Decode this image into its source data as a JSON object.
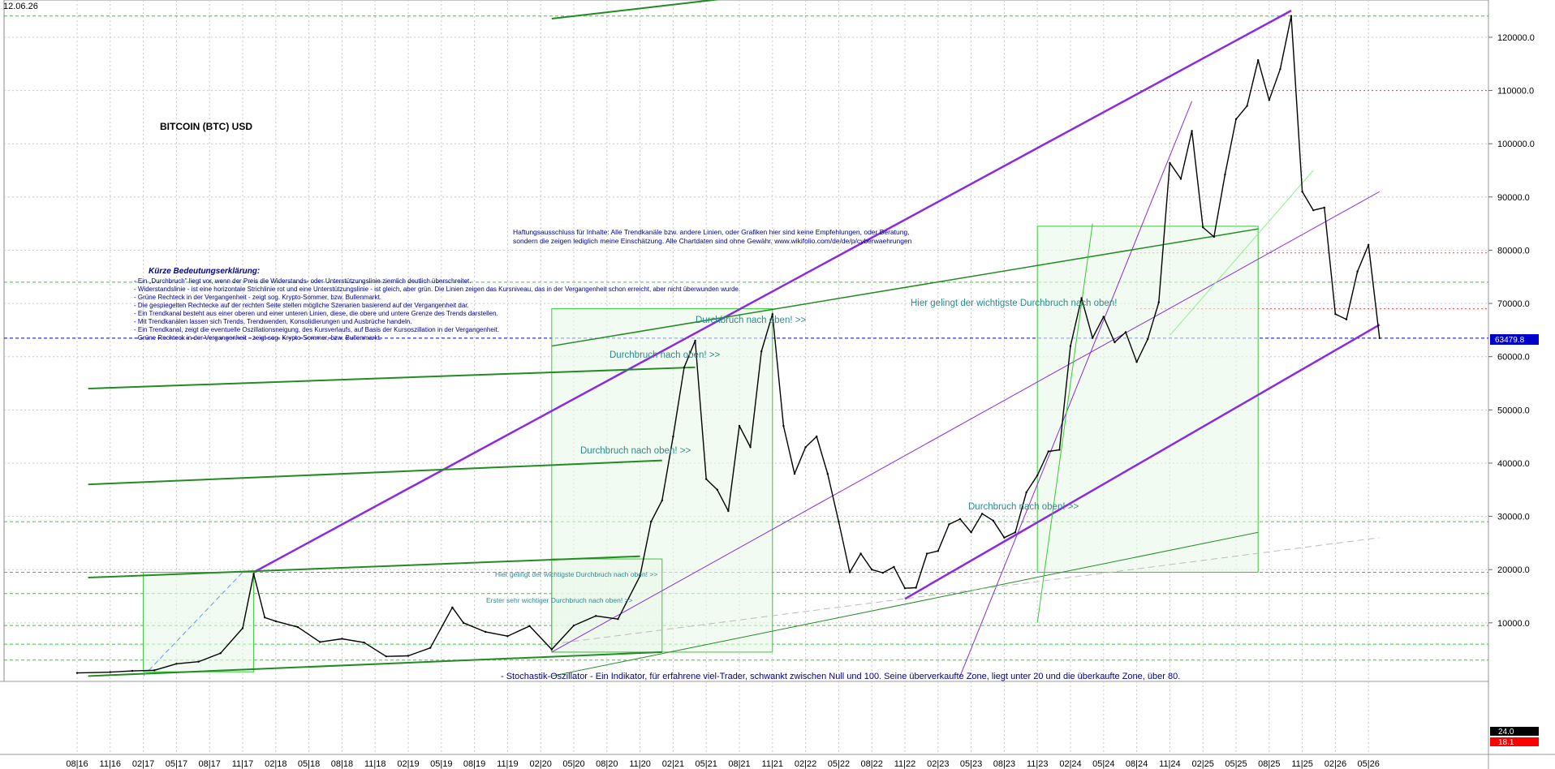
{
  "header": {
    "date": "12.06.26"
  },
  "chart_data": {
    "type": "line",
    "title": "BITCOIN (BTC) USD",
    "xlabel": "",
    "ylabel": "",
    "x_ticks": [
      "08|16",
      "11|16",
      "02|17",
      "05|17",
      "08|17",
      "11|17",
      "02|18",
      "05|18",
      "08|18",
      "11|18",
      "02|19",
      "05|19",
      "08|19",
      "11|19",
      "02|20",
      "05|20",
      "08|20",
      "11|20",
      "02|21",
      "05|21",
      "08|21",
      "11|21",
      "02|22",
      "05|22",
      "08|22",
      "11|22",
      "02|23",
      "05|23",
      "08|23",
      "11|23",
      "02|24",
      "05|24",
      "08|24",
      "11|24",
      "02|25",
      "05|25",
      "08|25",
      "11|25",
      "02|26",
      "05|26"
    ],
    "y_ticks": [
      10000,
      20000,
      30000,
      40000,
      50000,
      60000,
      70000,
      80000,
      90000,
      100000,
      110000,
      120000
    ],
    "y_tick_labels": [
      "10000.0",
      "20000.0",
      "30000.0",
      "40000.0",
      "50000.0",
      "60000.0",
      "70000.0",
      "80000.0",
      "90000.0",
      "100000.0",
      "110000.0",
      "120000.0"
    ],
    "ylim": [
      -1000,
      127000
    ],
    "grid": true,
    "last_price": 63479.8,
    "last_price_label": "63479.8",
    "series": [
      {
        "name": "",
        "color": "#000000",
        "points": [
          [
            "2016-08",
            590
          ],
          [
            "2016-11",
            740
          ],
          [
            "2017-01",
            970
          ],
          [
            "2017-03",
            1080
          ],
          [
            "2017-05",
            2300
          ],
          [
            "2017-07",
            2700
          ],
          [
            "2017-09",
            4300
          ],
          [
            "2017-11",
            9000
          ],
          [
            "2017-12",
            19200
          ],
          [
            "2018-01",
            11000
          ],
          [
            "2018-02",
            10300
          ],
          [
            "2018-04",
            9200
          ],
          [
            "2018-06",
            6400
          ],
          [
            "2018-08",
            7000
          ],
          [
            "2018-10",
            6300
          ],
          [
            "2018-12",
            3700
          ],
          [
            "2019-02",
            3800
          ],
          [
            "2019-04",
            5300
          ],
          [
            "2019-06",
            12900
          ],
          [
            "2019-07",
            10000
          ],
          [
            "2019-09",
            8300
          ],
          [
            "2019-11",
            7500
          ],
          [
            "2020-01",
            9400
          ],
          [
            "2020-03",
            5000
          ],
          [
            "2020-05",
            9500
          ],
          [
            "2020-07",
            11300
          ],
          [
            "2020-09",
            10700
          ],
          [
            "2020-11",
            18800
          ],
          [
            "2020-12",
            29000
          ],
          [
            "2021-01",
            33000
          ],
          [
            "2021-02",
            45000
          ],
          [
            "2021-03",
            58000
          ],
          [
            "2021-04",
            63000
          ],
          [
            "2021-05",
            37000
          ],
          [
            "2021-06",
            35000
          ],
          [
            "2021-07",
            31000
          ],
          [
            "2021-08",
            47000
          ],
          [
            "2021-09",
            43000
          ],
          [
            "2021-10",
            61000
          ],
          [
            "2021-11",
            68000
          ],
          [
            "2021-12",
            47000
          ],
          [
            "2022-01",
            38000
          ],
          [
            "2022-02",
            43000
          ],
          [
            "2022-03",
            45000
          ],
          [
            "2022-04",
            38000
          ],
          [
            "2022-05",
            29000
          ],
          [
            "2022-06",
            19500
          ],
          [
            "2022-07",
            23000
          ],
          [
            "2022-08",
            20000
          ],
          [
            "2022-09",
            19400
          ],
          [
            "2022-10",
            20500
          ],
          [
            "2022-11",
            16500
          ],
          [
            "2022-12",
            16600
          ],
          [
            "2023-01",
            23000
          ],
          [
            "2023-02",
            23500
          ],
          [
            "2023-03",
            28500
          ],
          [
            "2023-04",
            29500
          ],
          [
            "2023-05",
            27000
          ],
          [
            "2023-06",
            30500
          ],
          [
            "2023-07",
            29200
          ],
          [
            "2023-08",
            26000
          ],
          [
            "2023-09",
            27000
          ],
          [
            "2023-10",
            34500
          ],
          [
            "2023-11",
            37700
          ],
          [
            "2023-12",
            42200
          ],
          [
            "2024-01",
            42500
          ],
          [
            "2024-02",
            62000
          ],
          [
            "2024-03",
            71000
          ],
          [
            "2024-04",
            63500
          ],
          [
            "2024-05",
            67500
          ],
          [
            "2024-06",
            62700
          ],
          [
            "2024-07",
            64600
          ],
          [
            "2024-08",
            59000
          ],
          [
            "2024-09",
            63300
          ],
          [
            "2024-10",
            70200
          ],
          [
            "2024-11",
            96400
          ],
          [
            "2024-12",
            93400
          ],
          [
            "2025-01",
            102400
          ],
          [
            "2025-02",
            84300
          ],
          [
            "2025-03",
            82500
          ],
          [
            "2025-04",
            94200
          ],
          [
            "2025-05",
            104600
          ],
          [
            "2025-06",
            107100
          ],
          [
            "2025-07",
            115700
          ],
          [
            "2025-08",
            108200
          ],
          [
            "2025-09",
            114000
          ],
          [
            "2025-10",
            124000
          ],
          [
            "2025-11",
            91000
          ],
          [
            "2025-12",
            87500
          ],
          [
            "2026-01",
            88000
          ],
          [
            "2026-02",
            68000
          ],
          [
            "2026-03",
            67000
          ],
          [
            "2026-04",
            76000
          ],
          [
            "2026-05",
            81000
          ],
          [
            "2026-06",
            63479.8
          ]
        ]
      }
    ],
    "annotations": [
      "Kürze Bedeutungserklärung:",
      "- Ein „Durchbruch\" liegt vor, wenn der Preis die Widerstands- oder Unterstützungslinie ziemlich deutlich überschreitet.",
      "- Widerstandslinie - ist eine horizontale Strichlinie rot und eine Unterstützungslinie - ist gleich, aber grün. Die Linien zeigen das Kursniveau, das in der Vergangenheit schon erreicht, aber nicht überwunden wurde.",
      "- Grüne Rechteck in der Vergangenheit - zeigt sog. Krypto-Sommer, bzw. Bullenmarkt.",
      "- Die gespiegelten Rechtecke auf der rechten Seite stellen mögliche Szenarien basierend auf der Vergangenheit dar.",
      "- Ein Trendkanal besteht aus einer oberen und einer unteren Linien, diese, die obere und untere Grenze des Trends darstellen.",
      "- Mit Trendkanälen lassen sich Trends, Trendwenden, Konsolidierungen und Ausbrüche handeln.",
      "- Ein Trendkanal, zeigt die eventuelle Oszillationsneigung, des Kursverlaufs, auf Basis der Kursoszillation in der Vergangenheit.",
      "- Grüne Rechteck in der Vergangenheit - zeigt sog. Krypto-Sommer, bzw. Bullenmarkt.",
      "Haftungsausschluss für Inhalte: Alle Trendkanäle bzw. andere Linien, oder Grafiken hier sind keine Empfehlungen, oder Beratung,",
      "sondern die zeigen lediglich meine  Einschätzung. Alle Chartdaten sind ohne Gewähr.  www.wikifolio.com/de/de/p/cyberwaehrungen",
      "Hier gelingt der wichtigste Durchbruch nach oben!",
      "Durchbruch nach oben! >>",
      "Durchbruch nach oben! >>",
      "Durchbruch nach oben! >>",
      "Durchbruch nach oben! >>",
      "Hier gelingt der wichtigste Durchbruch nach oben! >>",
      "Erster sehr wichtiger Durchbruch nach oben! >>",
      "- Stochastik-Oszillator - Ein Indikator, für erfahrene viel-Trader, schwankt zwischen Null und 100. Seine überverkaufte Zone, liegt unter 20 und die überkaufte Zone, über 80."
    ],
    "oscillator": {
      "labels": [
        "24.0",
        "18.1"
      ],
      "colors": [
        "#000000",
        "#ff0000"
      ]
    },
    "colors": {
      "price": "#000000",
      "trend_channel": "#8a2be2",
      "support": "#00aa00",
      "resistance": "#ff0000",
      "last_price": "#0000cc",
      "label_bg": "#0000cc"
    }
  }
}
